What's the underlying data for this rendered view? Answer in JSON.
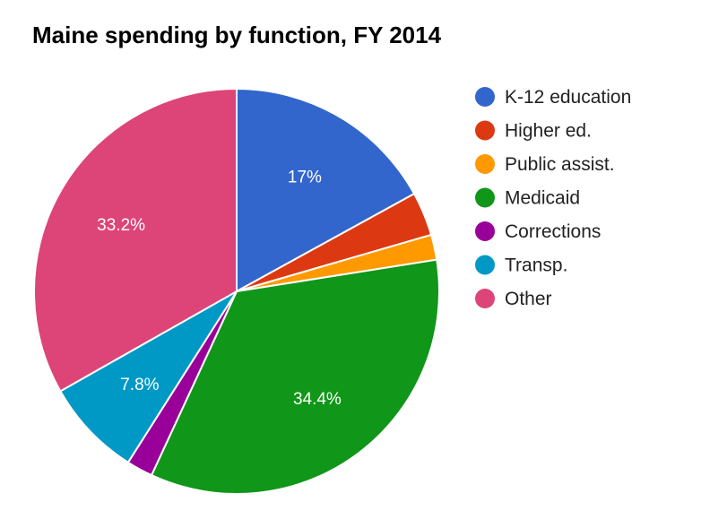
{
  "chart_data": {
    "type": "pie",
    "title": "Maine spending by function, FY 2014",
    "legend_position": "right",
    "start_angle_deg": 0,
    "direction": "clockwise",
    "slices": [
      {
        "label": "K-12 education",
        "value": 17.0,
        "display": "17%",
        "color": "#3366cc"
      },
      {
        "label": "Higher ed.",
        "value": 3.5,
        "display": "",
        "color": "#dc3912"
      },
      {
        "label": "Public assist.",
        "value": 2.0,
        "display": "",
        "color": "#ff9900"
      },
      {
        "label": "Medicaid",
        "value": 34.4,
        "display": "34.4%",
        "color": "#109618"
      },
      {
        "label": "Corrections",
        "value": 2.1,
        "display": "",
        "color": "#990099"
      },
      {
        "label": "Transp.",
        "value": 7.8,
        "display": "7.8%",
        "color": "#0099c6"
      },
      {
        "label": "Other",
        "value": 33.2,
        "display": "33.2%",
        "color": "#dd4477"
      }
    ]
  }
}
